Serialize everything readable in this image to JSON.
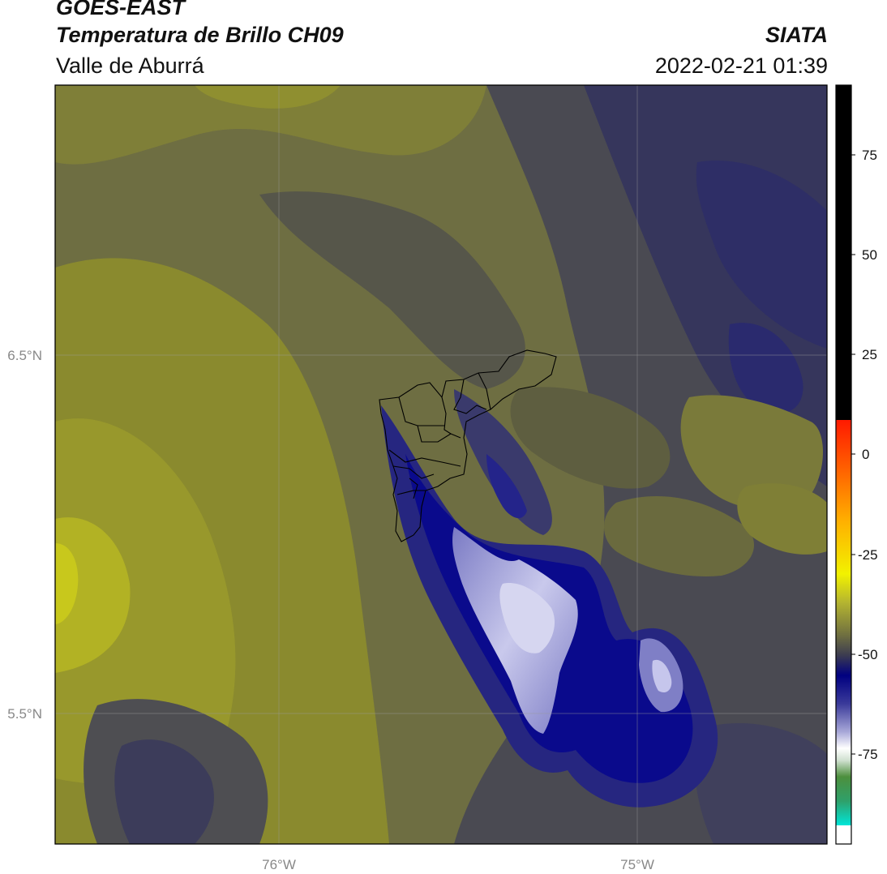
{
  "header": {
    "satellite": "GOES-EAST",
    "product": "Temperatura de Brillo CH09",
    "region": "Valle de Aburrá",
    "agency": "SIATA",
    "datetime": "2022-02-21 01:39"
  },
  "map": {
    "lat_labels": [
      "6.5°N",
      "5.5°N"
    ],
    "lon_labels": [
      "76°W",
      "75°W"
    ],
    "gridlines": true
  },
  "colorbar": {
    "ticks": [
      "75",
      "50",
      "25",
      "0",
      "-25",
      "-50",
      "-75"
    ],
    "colors": {
      "black": "#000000",
      "red": "#ff1a00",
      "orange": "#ff8c00",
      "yellow": "#f2f200",
      "olive": "#8c8c2a",
      "gray": "#4a4a4a",
      "navy": "#000080",
      "lavender": "#a9a9d9",
      "white": "#ffffff",
      "green": "#2f8f2f",
      "cyan": "#00e5d8"
    }
  }
}
